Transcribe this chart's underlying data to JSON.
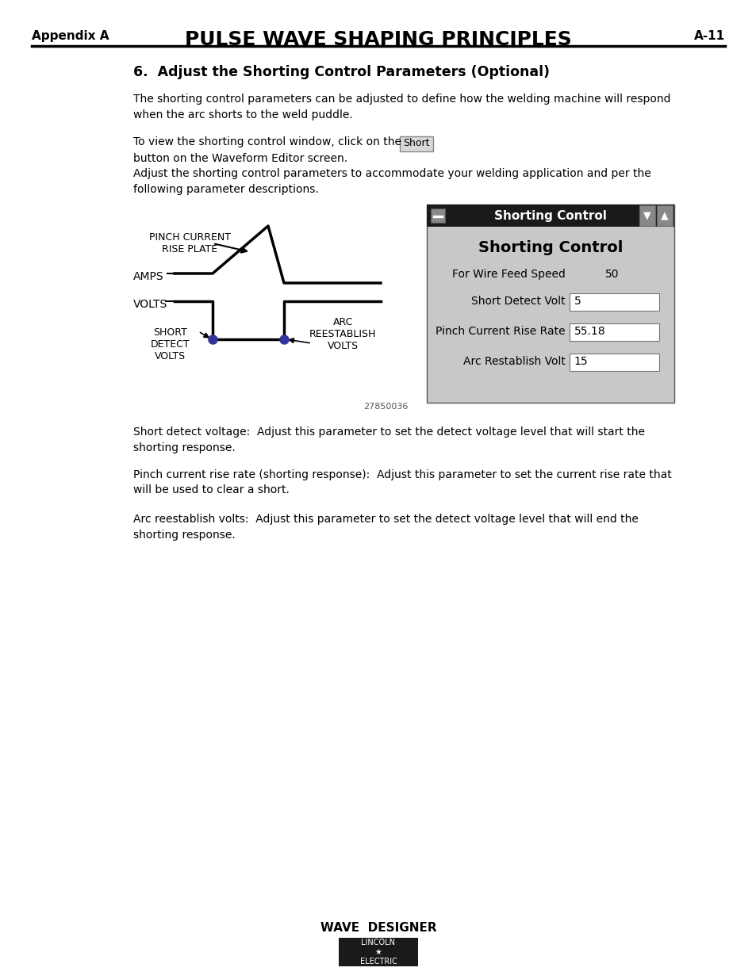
{
  "page_title": "PULSE WAVE SHAPING PRINCIPLES",
  "appendix_label": "Appendix A",
  "page_num": "A-11",
  "section_title": "6.  Adjust the Shorting Control Parameters (Optional)",
  "para1": "The shorting control parameters can be adjusted to define how the welding machine will respond\nwhen the arc shorts to the weld puddle.",
  "para2": "To view the shorting control window, click on the",
  "short_button": "Short",
  "para2b": "button on the Waveform Editor screen.\nAdjust the shorting control parameters to accommodate your welding application and per the\nfollowing parameter descriptions.",
  "diagram_note": "27850036",
  "sc_title": "Shorting Control",
  "sc_subtitle": "Shorting Control",
  "sc_row1_label": "For Wire Feed Speed",
  "sc_row1_val": "50",
  "sc_row2_label": "Short Detect Volt",
  "sc_row2_val": "5",
  "sc_row3_label": "Pinch Current Rise Rate",
  "sc_row3_val": "55.18",
  "sc_row4_label": "Arc Restablish Volt",
  "sc_row4_val": "15",
  "diag_label_amps": "AMPS",
  "diag_label_volts": "VOLTS",
  "diag_label_pinch": "PINCH CURRENT\nRISE PLATE",
  "diag_label_short": "SHORT\nDETECT\nVOLTS",
  "diag_label_arc": "ARC\nREESTABLISH\nVOLTS",
  "body_para3": "Short detect voltage:  Adjust this parameter to set the detect voltage level that will start the\nshorting response.",
  "body_para4": "Pinch current rise rate (shorting response):  Adjust this parameter to set the current rise rate that\nwill be used to clear a short.",
  "body_para5": "Arc reestablish volts:  Adjust this parameter to set the detect voltage level that will end the\nshorting response.",
  "footer_title": "WAVE  DESIGNER",
  "bg_color": "#ffffff",
  "text_color": "#000000",
  "line_color": "#000000",
  "sc_bg": "#c8c8c8",
  "sc_header_bg": "#1a1a1a",
  "sc_header_text": "#ffffff",
  "sc_input_bg": "#ffffff",
  "dot_color": "#333399"
}
